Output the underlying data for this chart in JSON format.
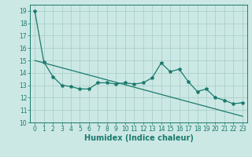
{
  "xlabel": "Humidex (Indice chaleur)",
  "xlim": [
    -0.5,
    23.5
  ],
  "ylim": [
    10,
    19.5
  ],
  "yticks": [
    10,
    11,
    12,
    13,
    14,
    15,
    16,
    17,
    18,
    19
  ],
  "xticks": [
    0,
    1,
    2,
    3,
    4,
    5,
    6,
    7,
    8,
    9,
    10,
    11,
    12,
    13,
    14,
    15,
    16,
    17,
    18,
    19,
    20,
    21,
    22,
    23
  ],
  "line1_x": [
    0,
    1,
    2,
    3,
    4,
    5,
    6,
    7,
    8,
    9,
    10,
    11,
    12,
    13,
    14,
    15,
    16,
    17,
    18,
    19,
    20,
    21,
    22,
    23
  ],
  "line1_y": [
    19.0,
    14.9,
    13.7,
    13.0,
    12.9,
    12.7,
    12.7,
    13.2,
    13.2,
    13.1,
    13.2,
    13.1,
    13.2,
    13.6,
    14.8,
    14.1,
    14.3,
    13.3,
    12.5,
    12.7,
    12.0,
    11.8,
    11.5,
    11.6
  ],
  "line2_x": [
    0,
    23
  ],
  "line2_y": [
    15.0,
    10.5
  ],
  "line_color": "#1a7a6e",
  "bg_color": "#cce8e4",
  "grid_color": "#aacfca",
  "tick_fontsize": 5.5,
  "xlabel_fontsize": 7.0,
  "marker": "*",
  "marker_size": 3.0,
  "linewidth": 0.9
}
